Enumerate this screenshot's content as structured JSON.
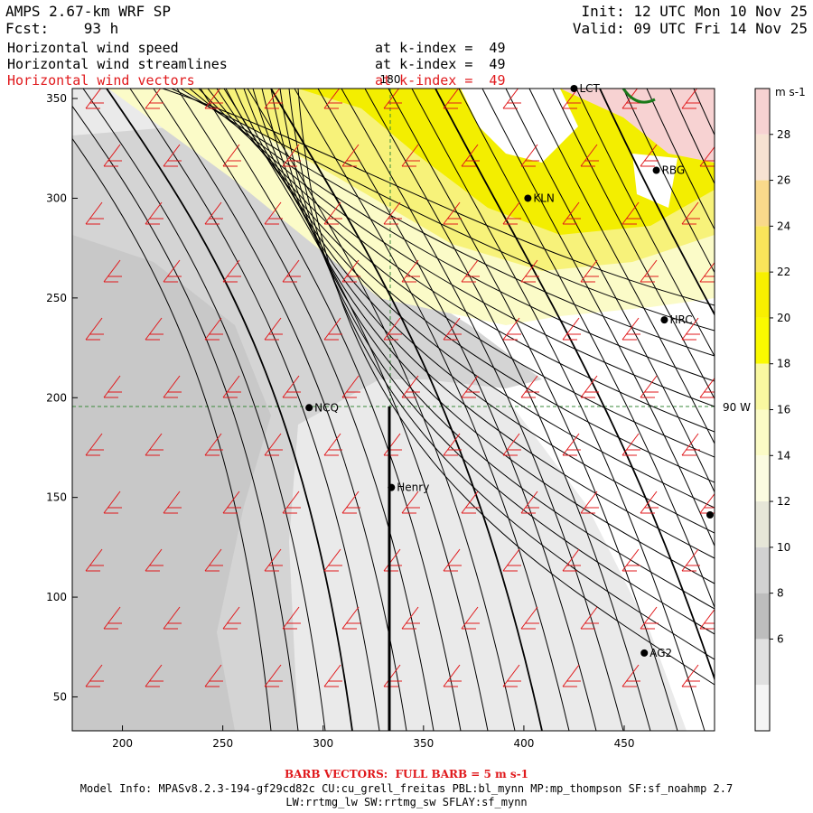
{
  "header": {
    "model": "AMPS 2.67-km WRF SP",
    "fcst": "Fcst:    93 h",
    "init": "Init: 12 UTC Mon 10 Nov 25",
    "valid": "Valid: 09 UTC Fri 14 Nov 25",
    "fields": [
      {
        "label": "Horizontal wind speed",
        "level": "at k-index =  49",
        "color": "#000000"
      },
      {
        "label": "Horizontal wind streamlines",
        "level": "at k-index =  49",
        "color": "#000000"
      },
      {
        "label": "Horizontal wind vectors",
        "level": "at k-index =  49",
        "color": "#e0191c"
      }
    ]
  },
  "map": {
    "x_ticks": [
      "200",
      "250",
      "300",
      "350",
      "400",
      "450"
    ],
    "y_ticks": [
      "350",
      "300",
      "250",
      "200",
      "150",
      "100",
      "50"
    ],
    "x_range": [
      175,
      495
    ],
    "y_range": [
      33,
      355
    ],
    "meridian_label": "180",
    "parallel_label": "90 W",
    "stations": [
      {
        "name": "KLN",
        "x": 402,
        "y": 300
      },
      {
        "name": "RBG",
        "x": 466,
        "y": 314
      },
      {
        "name": "HRC",
        "x": 470,
        "y": 239
      },
      {
        "name": "NCQ",
        "x": 293,
        "y": 195
      },
      {
        "name": "Henry",
        "x": 334,
        "y": 155
      },
      {
        "name": "AG2",
        "x": 460,
        "y": 72
      },
      {
        "name": "LCT",
        "x": 425,
        "y": 355
      }
    ]
  },
  "colorbar": {
    "unit": "m s-1",
    "labels": [
      "28",
      "26",
      "24",
      "22",
      "20",
      "18",
      "16",
      "14",
      "12",
      "10",
      "8",
      "6"
    ],
    "colors": [
      "#f7d2d2",
      "#f7e2d2",
      "#f9d98b",
      "#f9e55a",
      "#f8f000",
      "#fafa00",
      "#f9f8a0",
      "#fbfbc6",
      "#fbfbe0",
      "#e6e6d8",
      "#d2d2d2",
      "#bdbdbd",
      "#e0e0e0",
      "#f5f5f5"
    ]
  },
  "footer": {
    "barb": "BARB VECTORS:  FULL BARB = 5 m s-1",
    "model_info": "Model Info: MPASv8.2.3-194-gf29cd82c CU:cu_grell_freitas PBL:bl_mynn MP:mp_thompson SF:sf_noahmp 2.7",
    "physics": "LW:rrtmg_lw SW:rrtmg_sw SFLAY:sf_mynn"
  }
}
